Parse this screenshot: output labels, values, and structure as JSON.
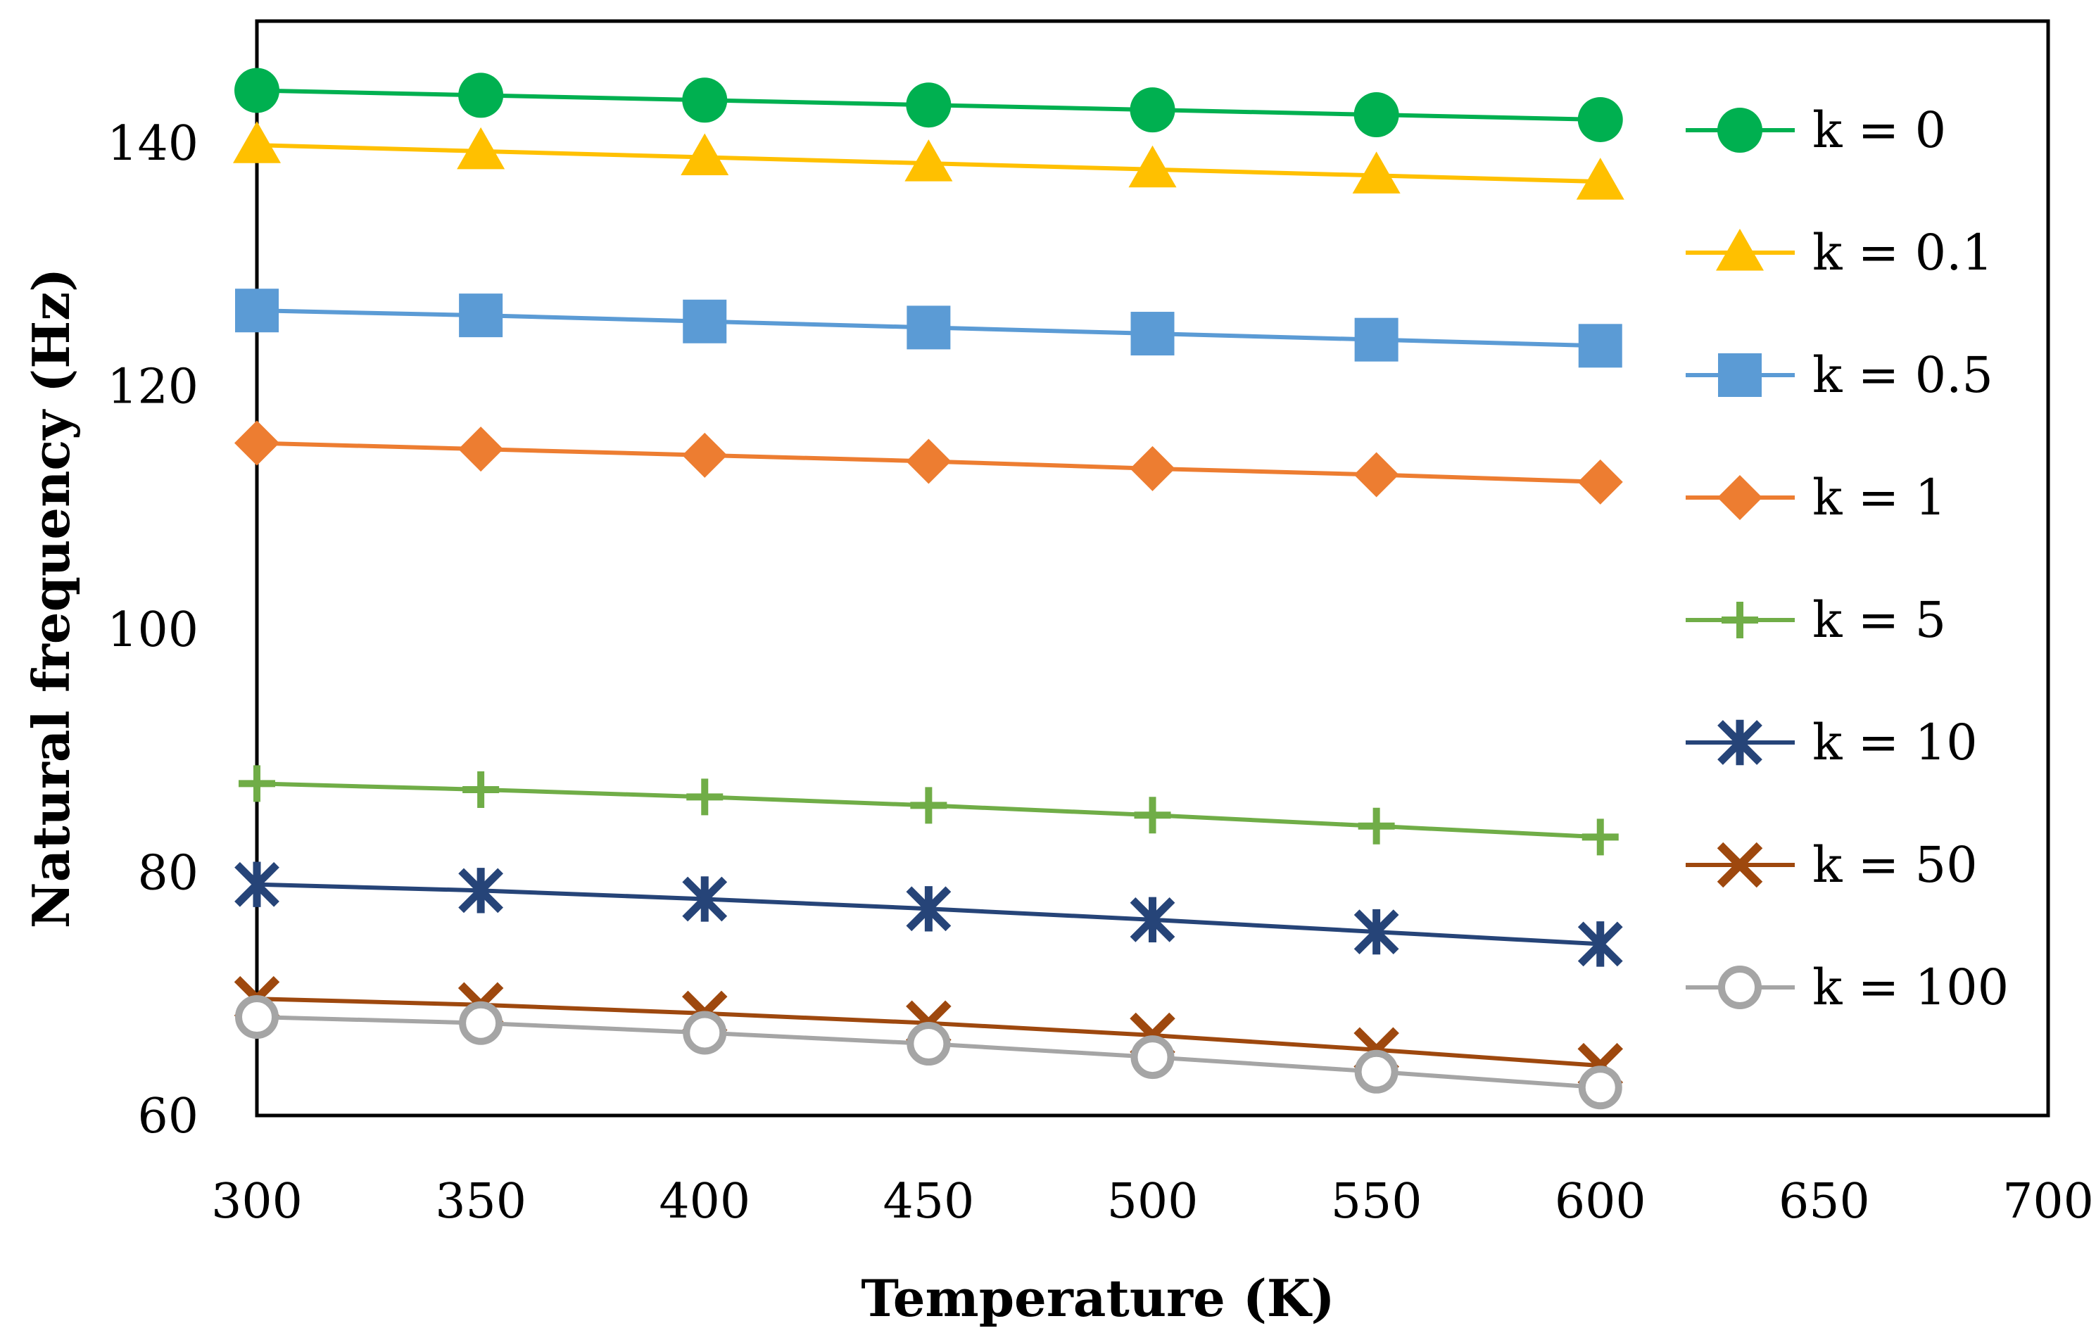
{
  "chart_data": {
    "type": "line",
    "title": "",
    "xlabel": "Temperature (K)",
    "ylabel": "Natural frequency (Hz)",
    "xlim": [
      300,
      700
    ],
    "ylim": [
      60,
      150
    ],
    "x_ticks": [
      300,
      350,
      400,
      450,
      500,
      550,
      600,
      650,
      700
    ],
    "y_ticks": [
      60,
      80,
      100,
      120,
      140
    ],
    "grid": false,
    "legend_position": "right",
    "x": [
      300,
      350,
      400,
      450,
      500,
      550,
      600
    ],
    "series": [
      {
        "name": "k = 0",
        "color": "#00B050",
        "marker": "circle",
        "values": [
          144.3,
          143.9,
          143.5,
          143.1,
          142.7,
          142.3,
          141.9
        ]
      },
      {
        "name": "k = 0.1",
        "color": "#FFC000",
        "marker": "triangle",
        "values": [
          139.8,
          139.3,
          138.8,
          138.3,
          137.8,
          137.3,
          136.8
        ]
      },
      {
        "name": "k = 0.5",
        "color": "#5B9BD5",
        "marker": "square",
        "values": [
          126.2,
          125.8,
          125.3,
          124.8,
          124.3,
          123.8,
          123.3
        ]
      },
      {
        "name": "k = 1",
        "color": "#ED7D31",
        "marker": "diamond",
        "values": [
          115.3,
          114.8,
          114.3,
          113.8,
          113.2,
          112.7,
          112.1
        ]
      },
      {
        "name": "k = 5",
        "color": "#70AD47",
        "marker": "plus",
        "values": [
          87.3,
          86.8,
          86.2,
          85.5,
          84.7,
          83.8,
          82.9
        ]
      },
      {
        "name": "k = 10",
        "color": "#264478",
        "marker": "star",
        "values": [
          79.0,
          78.5,
          77.8,
          77.0,
          76.1,
          75.1,
          74.1
        ]
      },
      {
        "name": "k = 50",
        "color": "#9E480E",
        "marker": "x",
        "values": [
          69.6,
          69.1,
          68.4,
          67.6,
          66.6,
          65.4,
          64.1
        ]
      },
      {
        "name": "k = 100",
        "color": "#A5A5A5",
        "marker": "circle-open",
        "values": [
          68.1,
          67.6,
          66.8,
          65.9,
          64.8,
          63.6,
          62.3
        ]
      }
    ]
  }
}
